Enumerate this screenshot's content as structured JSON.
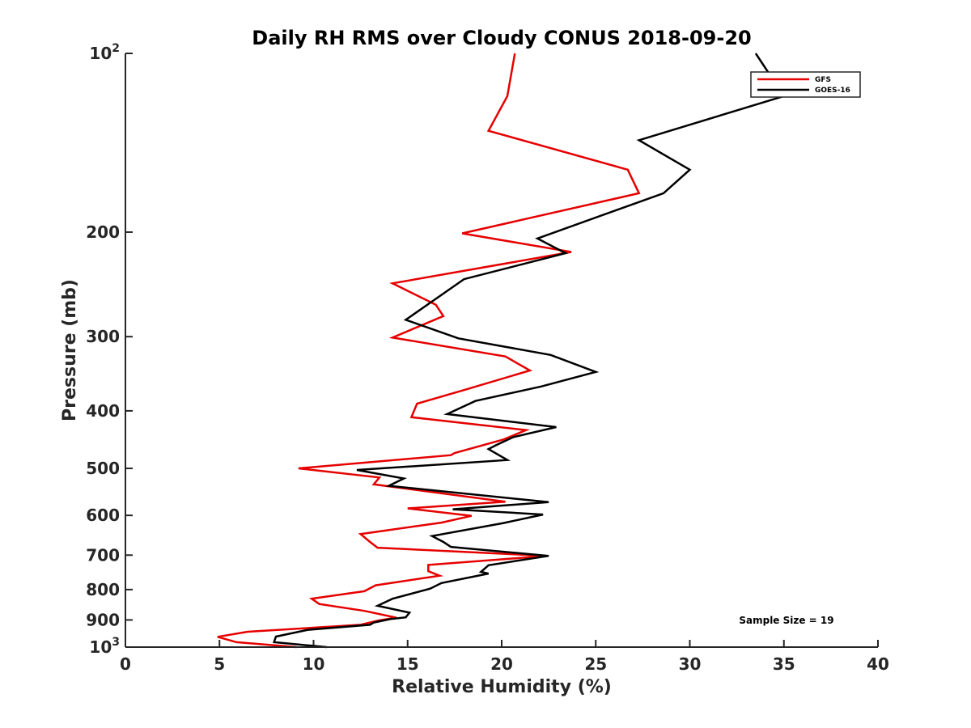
{
  "chart_data": {
    "type": "line",
    "title": "Daily RH RMS over Cloudy CONUS 2018-09-20",
    "xlabel": "Relative Humidity (%)",
    "ylabel": "Pressure (mb)",
    "xlim": [
      0,
      40
    ],
    "ylim": [
      100,
      1000
    ],
    "y_scale": "log",
    "y_reversed": true,
    "grid": false,
    "legend_position": "top-right",
    "x_ticks": [
      0,
      5,
      10,
      15,
      20,
      25,
      30,
      35,
      40
    ],
    "x_tick_labels": [
      "0",
      "5",
      "10",
      "15",
      "20",
      "25",
      "30",
      "35",
      "40"
    ],
    "y_ticks": [
      {
        "value": 100,
        "base": "10",
        "exp": "2"
      },
      {
        "value": 200,
        "base": "200",
        "exp": ""
      },
      {
        "value": 300,
        "base": "300",
        "exp": ""
      },
      {
        "value": 400,
        "base": "400",
        "exp": ""
      },
      {
        "value": 500,
        "base": "500",
        "exp": ""
      },
      {
        "value": 600,
        "base": "600",
        "exp": ""
      },
      {
        "value": 700,
        "base": "700",
        "exp": ""
      },
      {
        "value": 800,
        "base": "800",
        "exp": ""
      },
      {
        "value": 900,
        "base": "900",
        "exp": ""
      },
      {
        "value": 1000,
        "base": "10",
        "exp": "3"
      }
    ],
    "annotation": "Sample Size = 19",
    "series": [
      {
        "name": "GFS",
        "color": "#e60000",
        "points": [
          [
            20.7,
            100
          ],
          [
            20.3,
            118
          ],
          [
            19.3,
            135
          ],
          [
            26.7,
            157
          ],
          [
            27.3,
            172
          ],
          [
            17.9,
            201
          ],
          [
            23.7,
            216
          ],
          [
            14.2,
            244
          ],
          [
            16.5,
            265
          ],
          [
            16.9,
            277
          ],
          [
            14.2,
            301
          ],
          [
            20.2,
            324
          ],
          [
            21.5,
            342
          ],
          [
            18.0,
            369
          ],
          [
            15.5,
            389
          ],
          [
            15.2,
            410
          ],
          [
            21.3,
            431
          ],
          [
            20.1,
            447
          ],
          [
            17.5,
            471
          ],
          [
            17.3,
            475
          ],
          [
            9.2,
            500
          ],
          [
            13.5,
            518
          ],
          [
            13.2,
            532
          ],
          [
            20.2,
            569
          ],
          [
            15.0,
            584
          ],
          [
            18.4,
            601
          ],
          [
            16.8,
            617
          ],
          [
            12.5,
            645
          ],
          [
            13.0,
            665
          ],
          [
            13.4,
            680
          ],
          [
            22.4,
            702
          ],
          [
            16.1,
            727
          ],
          [
            16.1,
            745
          ],
          [
            16.7,
            758
          ],
          [
            13.3,
            787
          ],
          [
            12.7,
            805
          ],
          [
            9.9,
            829
          ],
          [
            10.3,
            846
          ],
          [
            12.7,
            869
          ],
          [
            14.4,
            892
          ],
          [
            13.5,
            901
          ],
          [
            12.5,
            917
          ],
          [
            6.5,
            942
          ],
          [
            4.9,
            961
          ],
          [
            5.9,
            981
          ],
          [
            9.1,
            1000
          ]
        ]
      },
      {
        "name": "GOES-16",
        "color": "#000000",
        "points": [
          [
            33.5,
            100
          ],
          [
            35.0,
            118
          ],
          [
            27.3,
            140
          ],
          [
            30.0,
            157
          ],
          [
            28.6,
            172
          ],
          [
            21.9,
            205
          ],
          [
            23.4,
            217
          ],
          [
            18.0,
            240
          ],
          [
            14.9,
            281
          ],
          [
            17.7,
            302
          ],
          [
            22.6,
            322
          ],
          [
            25.0,
            344
          ],
          [
            22.1,
            364
          ],
          [
            18.6,
            385
          ],
          [
            17.1,
            405
          ],
          [
            22.9,
            426
          ],
          [
            20.6,
            443
          ],
          [
            19.7,
            457
          ],
          [
            19.3,
            464
          ],
          [
            20.3,
            484
          ],
          [
            12.3,
            503
          ],
          [
            14.8,
            520
          ],
          [
            14.0,
            535
          ],
          [
            22.5,
            570
          ],
          [
            17.4,
            586
          ],
          [
            22.2,
            598
          ],
          [
            20.1,
            618
          ],
          [
            16.3,
            650
          ],
          [
            16.9,
            665
          ],
          [
            17.3,
            678
          ],
          [
            22.5,
            702
          ],
          [
            19.3,
            728
          ],
          [
            18.9,
            747
          ],
          [
            19.3,
            752
          ],
          [
            16.8,
            780
          ],
          [
            16.2,
            797
          ],
          [
            14.2,
            829
          ],
          [
            13.4,
            852
          ],
          [
            15.1,
            875
          ],
          [
            14.9,
            891
          ],
          [
            14.1,
            897
          ],
          [
            13.2,
            909
          ],
          [
            13.0,
            917
          ],
          [
            9.7,
            935
          ],
          [
            8.0,
            960
          ],
          [
            7.9,
            981
          ],
          [
            10.7,
            1000
          ]
        ]
      }
    ]
  }
}
